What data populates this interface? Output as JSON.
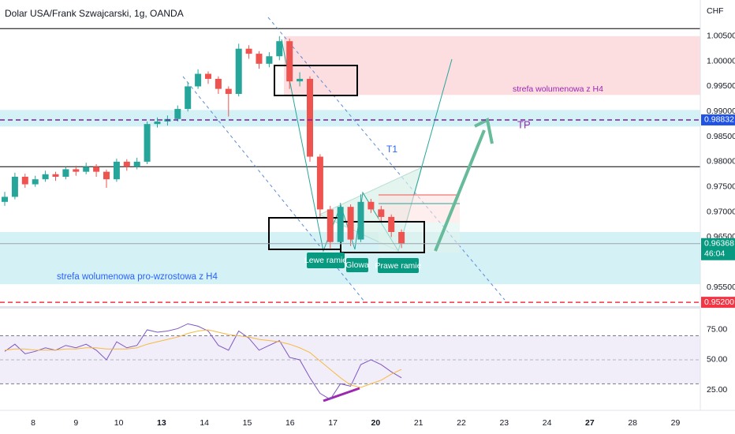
{
  "chart_data": [
    {
      "type": "candlestick",
      "title": "Dolar USA/Frank Szwajcarski, 1g, OANDA",
      "currency": "CHF",
      "x_labels": [
        "8",
        "9",
        "10",
        "13",
        "14",
        "15",
        "16",
        "17",
        "20",
        "21",
        "22",
        "23",
        "24",
        "27",
        "28",
        "29"
      ],
      "x_label_bold": [
        false,
        false,
        false,
        true,
        false,
        false,
        false,
        false,
        true,
        false,
        false,
        false,
        false,
        true,
        false,
        false
      ],
      "open": [
        0.972,
        0.973,
        0.977,
        0.9755,
        0.9765,
        0.9775,
        0.977,
        0.9785,
        0.978,
        0.979,
        0.978,
        0.9765,
        0.98,
        0.979,
        0.98,
        0.9875,
        0.988,
        0.9885,
        0.9905,
        0.995,
        0.9975,
        0.9965,
        0.9945,
        0.9935,
        1.0025,
        1.0015,
        0.9995,
        1.001,
        1.004,
        0.996,
        0.9965,
        0.981,
        0.9705,
        0.964,
        0.971,
        0.9645,
        0.972,
        0.9705,
        0.969,
        0.966
      ],
      "high": [
        0.974,
        0.9778,
        0.9776,
        0.9772,
        0.9782,
        0.978,
        0.979,
        0.9792,
        0.9798,
        0.9795,
        0.9784,
        0.9806,
        0.9805,
        0.9808,
        0.988,
        0.9888,
        0.9892,
        0.9912,
        0.9958,
        0.9984,
        0.998,
        0.997,
        0.995,
        1.0035,
        1.0032,
        1.002,
        1.0018,
        1.005,
        1.0045,
        0.9978,
        0.997,
        0.9815,
        0.9712,
        0.9718,
        0.9715,
        0.9735,
        0.9726,
        0.9712,
        0.9695,
        0.9665
      ],
      "low": [
        0.9712,
        0.9725,
        0.9748,
        0.975,
        0.976,
        0.9762,
        0.9765,
        0.9772,
        0.9775,
        0.977,
        0.9748,
        0.976,
        0.9782,
        0.9785,
        0.9795,
        0.9868,
        0.9872,
        0.988,
        0.99,
        0.9945,
        0.9955,
        0.9935,
        0.989,
        0.993,
        1.0005,
        0.9985,
        0.9988,
        1.0002,
        0.9945,
        0.995,
        0.98,
        0.969,
        0.9628,
        0.9635,
        0.9632,
        0.964,
        0.9698,
        0.9682,
        0.965,
        0.9628
      ],
      "close": [
        0.973,
        0.977,
        0.9755,
        0.9765,
        0.9775,
        0.977,
        0.9785,
        0.978,
        0.979,
        0.978,
        0.9765,
        0.98,
        0.979,
        0.98,
        0.9875,
        0.988,
        0.9885,
        0.9905,
        0.995,
        0.9975,
        0.9965,
        0.9945,
        0.9935,
        1.0025,
        1.0015,
        0.9995,
        1.001,
        1.004,
        0.996,
        0.9965,
        0.981,
        0.9705,
        0.964,
        0.971,
        0.9645,
        0.972,
        0.9705,
        0.969,
        0.966,
        0.9637
      ],
      "up_color": "#26a69a",
      "down_color": "#ef5350",
      "ylim": [
        0.9517,
        1.0122
      ],
      "yticks": [
        {
          "value": 0.955,
          "label": "0.95500"
        },
        {
          "value": 0.965,
          "label": "0.96500"
        },
        {
          "value": 0.97,
          "label": "0.97000"
        },
        {
          "value": 0.975,
          "label": "0.97500"
        },
        {
          "value": 0.98,
          "label": "0.98000"
        },
        {
          "value": 0.985,
          "label": "0.98500"
        },
        {
          "value": 0.99,
          "label": "0.99000"
        },
        {
          "value": 0.995,
          "label": "0.99500"
        },
        {
          "value": 1.0,
          "label": "1.00000"
        },
        {
          "value": 1.005,
          "label": "1.00500"
        }
      ],
      "hlines": [
        1.0065,
        0.979
      ],
      "zones": [
        {
          "from": 0.9933,
          "to": 1.005,
          "color": "#fcdde0"
        },
        {
          "from": 0.987,
          "to": 0.9903,
          "color": "#d4f1f6"
        },
        {
          "from": 0.9556,
          "to": 0.966,
          "color": "#d4f1f6"
        }
      ],
      "price_labels": [
        {
          "value": 0.98832,
          "label": "0.98832",
          "color": "#1e53e5",
          "line": "#7b1fa2"
        },
        {
          "value": 0.96368,
          "label": "0.96368",
          "countdown": "46:04",
          "color": "#089981",
          "line": "#9aa4b0"
        },
        {
          "value": 0.952,
          "label": "0.95200",
          "color": "#f23645",
          "line": "#f23645"
        }
      ],
      "annotations": [
        "strefa wolumenowa z H4",
        "T1",
        "TP",
        "Lewe ramię",
        "Glowa",
        "Prawe ramię",
        "strefa wolumenowa pro-wzrostowa z H4"
      ]
    },
    {
      "type": "line",
      "series": [
        {
          "color": "#7e57c2",
          "values": [
            57,
            63,
            55,
            57,
            60,
            58,
            62,
            60,
            63,
            58,
            50,
            65,
            60,
            62,
            75,
            73,
            74,
            76,
            80,
            78,
            74,
            62,
            58,
            74,
            68,
            58,
            62,
            66,
            52,
            50,
            35,
            22,
            17,
            30,
            28,
            46,
            50,
            46,
            40,
            35
          ]
        },
        {
          "color": "#f5b942",
          "values": [
            58,
            59,
            59,
            58,
            58,
            58,
            59,
            59,
            60,
            60,
            59,
            59,
            59,
            60,
            63,
            65,
            67,
            69,
            72,
            74,
            75,
            73,
            71,
            70,
            69,
            67,
            66,
            65,
            63,
            60,
            56,
            49,
            42,
            35,
            29,
            27,
            30,
            33,
            38,
            42
          ]
        }
      ],
      "band": [
        30,
        70
      ],
      "ylim": [
        9.2,
        90.1
      ],
      "yticks": [
        {
          "value": 25,
          "label": "25.00"
        },
        {
          "value": 50,
          "label": "50.00"
        },
        {
          "value": 75,
          "label": "75.00"
        }
      ]
    }
  ]
}
